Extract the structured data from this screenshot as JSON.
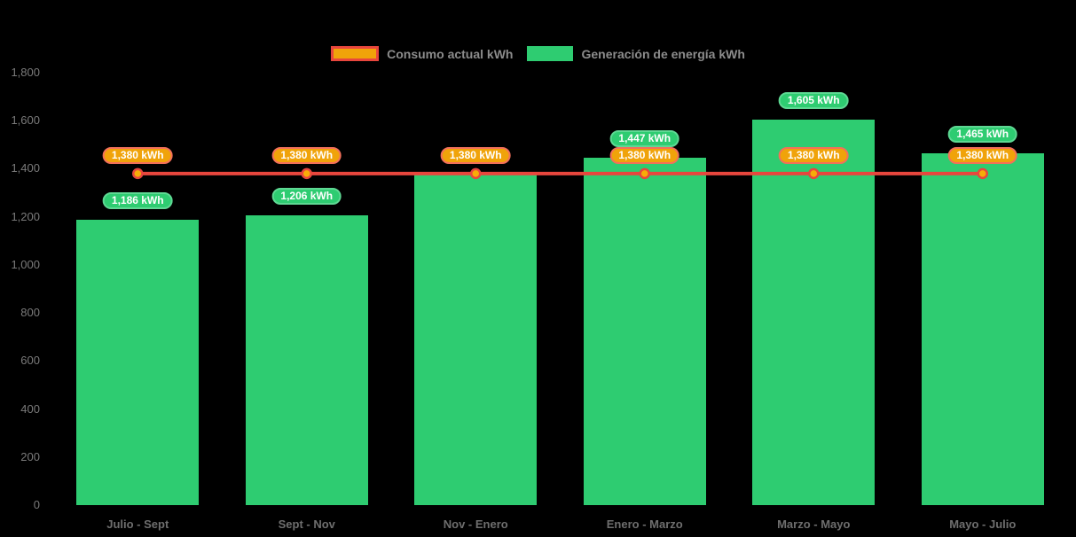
{
  "chart_data": {
    "type": "bar",
    "background": "#000000",
    "grid": false,
    "legend_position": "top",
    "categories": [
      "Julio - Sept",
      "Sept - Nov",
      "Nov - Enero",
      "Enero - Marzo",
      "Marzo - Mayo",
      "Mayo - Julio"
    ],
    "series": [
      {
        "name": "Consumo actual kWh",
        "type": "line",
        "values": [
          1380,
          1380,
          1380,
          1380,
          1380,
          1380
        ],
        "labels": [
          "1,380 kWh",
          "1,380 kWh",
          "1,380 kWh",
          "1,380 kWh",
          "1,380 kWh",
          "1,380 kWh"
        ],
        "color": "#e8463d",
        "point_color": "#f7ac08"
      },
      {
        "name": "Generación de energía kWh",
        "type": "bar",
        "values": [
          1186,
          1206,
          1380,
          1447,
          1605,
          1465
        ],
        "labels": [
          "1,186 kWh",
          "1,206 kWh",
          null,
          "1,447 kWh",
          "1,605 kWh",
          "1,465 kWh"
        ],
        "color": "#2ecc71"
      }
    ],
    "ylim": [
      0,
      1800
    ],
    "y_ticks": [
      {
        "value": 1800,
        "label": "1,800"
      },
      {
        "value": 1600,
        "label": "1,600"
      },
      {
        "value": 1400,
        "label": "1,400"
      },
      {
        "value": 1200,
        "label": "1,200"
      },
      {
        "value": 1000,
        "label": "1,000"
      },
      {
        "value": 800,
        "label": "800"
      },
      {
        "value": 600,
        "label": "600"
      },
      {
        "value": 400,
        "label": "400"
      },
      {
        "value": 200,
        "label": "200"
      },
      {
        "value": 0,
        "label": "0"
      }
    ]
  }
}
